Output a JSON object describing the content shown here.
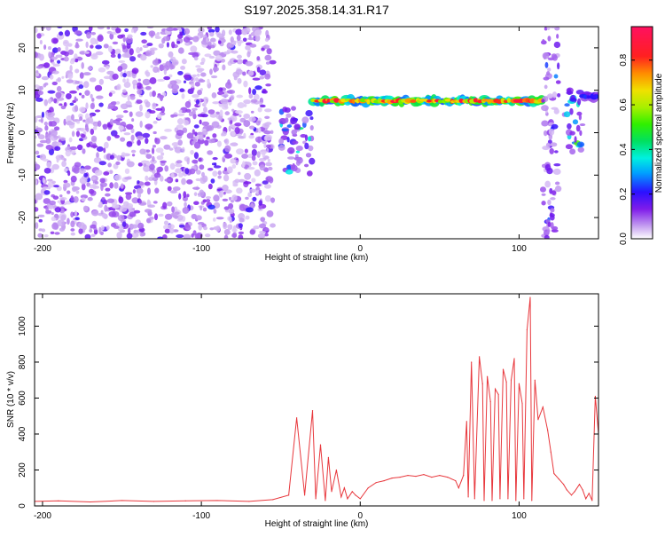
{
  "title": "S197.2025.358.14.31.R17",
  "chart_data": [
    {
      "type": "heatmap",
      "xlabel": "Height of straight line (km)",
      "ylabel": "Frequency (Hz)",
      "xlim": [
        -205,
        150
      ],
      "ylim": [
        -25,
        25
      ],
      "xticks": [
        -200,
        -100,
        0,
        100
      ],
      "yticks": [
        -20,
        -10,
        0,
        10,
        20
      ],
      "colorbar": {
        "label": "Normalized spectral amplitude",
        "range": [
          0,
          0.95
        ],
        "ticks": [
          0.0,
          0.2,
          0.4,
          0.6,
          0.8
        ]
      },
      "features": [
        {
          "x_range": [
            -205,
            -55
          ],
          "freq_range": [
            -25,
            25
          ],
          "amplitude": 0.15
        },
        {
          "x_range": [
            -50,
            -30
          ],
          "freq_range": [
            -10,
            6
          ],
          "amplitude": 0.3
        },
        {
          "x_range": [
            -30,
            115
          ],
          "freq": 7.5,
          "amplitude": 0.9
        },
        {
          "x_range": [
            115,
            125
          ],
          "freq_range": [
            -25,
            25
          ],
          "amplitude": 0.2
        },
        {
          "x_range": [
            128,
            140
          ],
          "freq_range": [
            -5,
            10
          ],
          "amplitude": 0.4
        },
        {
          "x_range": [
            140,
            150
          ],
          "freq": 8.5,
          "amplitude": 0.3
        }
      ]
    },
    {
      "type": "line",
      "xlabel": "Height of straight line (km)",
      "ylabel": "SNR (10 * v/v)",
      "xlim": [
        -205,
        150
      ],
      "ylim": [
        0,
        1180
      ],
      "xticks": [
        -200,
        -100,
        0,
        100
      ],
      "yticks": [
        0,
        200,
        400,
        600,
        800,
        1000
      ],
      "color": "#e8383d",
      "x": [
        -205,
        -190,
        -170,
        -150,
        -130,
        -110,
        -90,
        -70,
        -55,
        -45,
        -40,
        -35,
        -30,
        -28,
        -25,
        -22,
        -20,
        -18,
        -15,
        -12,
        -10,
        -8,
        -5,
        -3,
        0,
        5,
        10,
        15,
        20,
        25,
        30,
        35,
        40,
        45,
        50,
        55,
        60,
        62,
        65,
        67,
        68,
        70,
        72,
        75,
        77,
        78,
        80,
        82,
        83,
        85,
        87,
        88,
        90,
        92,
        93,
        95,
        97,
        98,
        100,
        102,
        103,
        105,
        107,
        108,
        110,
        112,
        115,
        118,
        120,
        122,
        125,
        128,
        130,
        133,
        135,
        138,
        140,
        142,
        144,
        146,
        148,
        150
      ],
      "values": [
        25,
        28,
        22,
        30,
        25,
        28,
        30,
        25,
        35,
        60,
        490,
        60,
        530,
        40,
        340,
        30,
        270,
        80,
        200,
        50,
        100,
        40,
        80,
        60,
        40,
        100,
        130,
        140,
        155,
        160,
        170,
        165,
        175,
        160,
        170,
        160,
        140,
        100,
        170,
        470,
        50,
        800,
        40,
        830,
        680,
        30,
        720,
        580,
        30,
        650,
        620,
        40,
        760,
        690,
        40,
        700,
        820,
        30,
        680,
        570,
        40,
        980,
        1160,
        30,
        700,
        480,
        550,
        420,
        300,
        180,
        150,
        120,
        90,
        60,
        80,
        120,
        90,
        40,
        70,
        30,
        610,
        400
      ]
    }
  ]
}
